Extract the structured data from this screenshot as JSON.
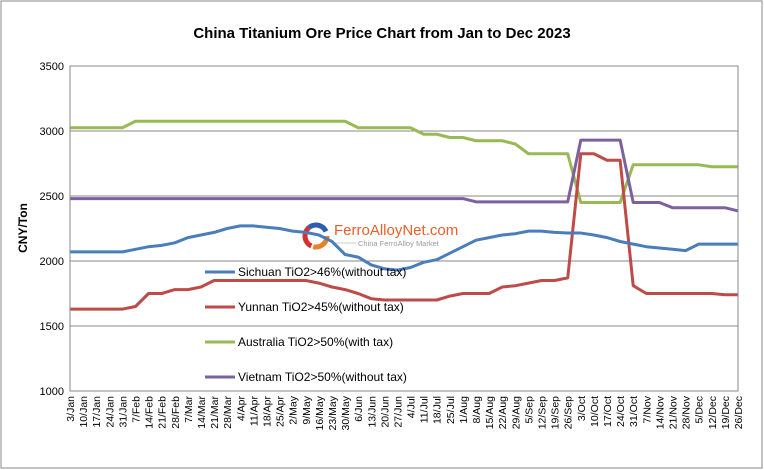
{
  "chart_data": {
    "type": "line",
    "title": "China Titanium Ore Price Chart from Jan to Dec 2023",
    "ylabel": "CNY/Ton",
    "xlabel": "",
    "ylim": [
      1000,
      3500
    ],
    "yticks": [
      1000,
      1500,
      2000,
      2500,
      3000,
      3500
    ],
    "grid": true,
    "legend": "inside-left",
    "categories": [
      "3/Jan",
      "10/Jan",
      "17/Jan",
      "24/Jan",
      "31/Jan",
      "7/Feb",
      "14/Feb",
      "21/Feb",
      "28/Feb",
      "7/Mar",
      "14/Mar",
      "21/Mar",
      "28/Mar",
      "4/Apr",
      "11/Apr",
      "18/Apr",
      "25/Apr",
      "2/May",
      "9/May",
      "16/May",
      "23/May",
      "30/May",
      "6/Jun",
      "13/Jun",
      "20/Jun",
      "27/Jun",
      "4/Jul",
      "11/Jul",
      "18/Jul",
      "25/Jul",
      "1/Aug",
      "8/Aug",
      "15/Aug",
      "22/Aug",
      "29/Aug",
      "5/Sep",
      "12/Sep",
      "19/Sep",
      "26/Sep",
      "3/Oct",
      "10/Oct",
      "17/Oct",
      "24/Oct",
      "31/Oct",
      "7/Nov",
      "14/Nov",
      "21/Nov",
      "28/Nov",
      "5/Dec",
      "12/Dec",
      "19/Dec",
      "26/Dec"
    ],
    "series": [
      {
        "name": "Sichuan TiO2>46%(without tax)",
        "color": "#4a7ebb",
        "values": [
          2070,
          2070,
          2070,
          2070,
          2070,
          2090,
          2110,
          2120,
          2140,
          2180,
          2200,
          2220,
          2250,
          2270,
          2270,
          2260,
          2250,
          2230,
          2220,
          2200,
          2150,
          2050,
          2030,
          1970,
          1940,
          1930,
          1950,
          1990,
          2010,
          2060,
          2110,
          2160,
          2180,
          2200,
          2210,
          2230,
          2230,
          2220,
          2215,
          2215,
          2200,
          2180,
          2150,
          2130,
          2110,
          2100,
          2090,
          2080,
          2130,
          2130,
          2130,
          2130
        ]
      },
      {
        "name": "Yunnan TiO2>45%(without tax)",
        "color": "#be4b48",
        "values": [
          1630,
          1630,
          1630,
          1630,
          1630,
          1650,
          1750,
          1750,
          1780,
          1780,
          1800,
          1850,
          1850,
          1850,
          1850,
          1850,
          1850,
          1850,
          1850,
          1830,
          1800,
          1780,
          1750,
          1710,
          1700,
          1700,
          1700,
          1700,
          1700,
          1730,
          1750,
          1750,
          1750,
          1800,
          1810,
          1830,
          1850,
          1850,
          1870,
          2825,
          2825,
          2775,
          2775,
          1810,
          1750,
          1750,
          1750,
          1750,
          1750,
          1750,
          1740,
          1740
        ]
      },
      {
        "name": "Australia TiO2>50%(with tax)",
        "color": "#98b954",
        "values": [
          3025,
          3025,
          3025,
          3025,
          3025,
          3075,
          3075,
          3075,
          3075,
          3075,
          3075,
          3075,
          3075,
          3075,
          3075,
          3075,
          3075,
          3075,
          3075,
          3075,
          3075,
          3075,
          3025,
          3025,
          3025,
          3025,
          3025,
          2975,
          2975,
          2950,
          2950,
          2925,
          2925,
          2925,
          2900,
          2825,
          2825,
          2825,
          2825,
          2450,
          2450,
          2450,
          2450,
          2740,
          2740,
          2740,
          2740,
          2740,
          2740,
          2725,
          2725,
          2725
        ]
      },
      {
        "name": "Vietnam TiO2>50%(without tax)",
        "color": "#7d60a0",
        "values": [
          2480,
          2480,
          2480,
          2480,
          2480,
          2480,
          2480,
          2480,
          2480,
          2480,
          2480,
          2480,
          2480,
          2480,
          2480,
          2480,
          2480,
          2480,
          2480,
          2480,
          2480,
          2480,
          2480,
          2480,
          2480,
          2480,
          2480,
          2480,
          2480,
          2480,
          2480,
          2455,
          2455,
          2455,
          2455,
          2455,
          2455,
          2455,
          2455,
          2930,
          2930,
          2930,
          2930,
          2450,
          2450,
          2450,
          2410,
          2410,
          2410,
          2410,
          2410,
          2385
        ]
      }
    ]
  },
  "watermark": {
    "brand": "FerroAlloyNet.com",
    "tagline": "China FerroAlloy Market"
  }
}
